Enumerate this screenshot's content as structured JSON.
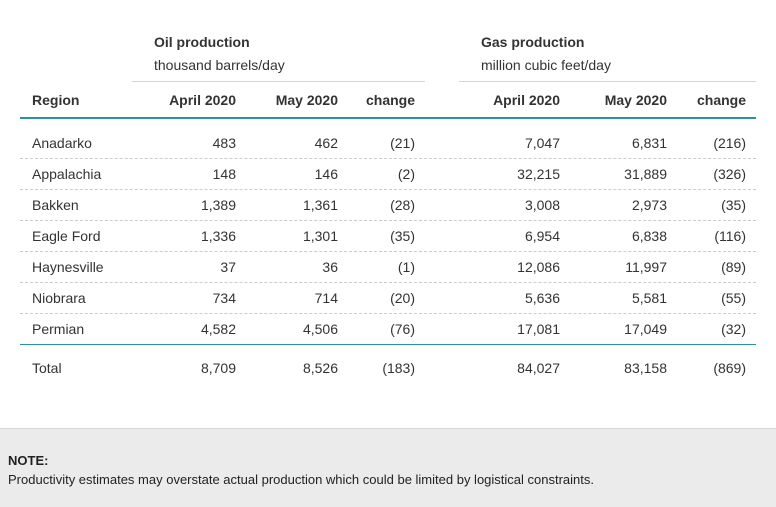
{
  "groups": {
    "oil": {
      "title": "Oil production",
      "unit": "thousand barrels/day"
    },
    "gas": {
      "title": "Gas production",
      "unit": "million cubic feet/day"
    }
  },
  "headers": {
    "region": "Region",
    "oil_april": "April 2020",
    "oil_may": "May 2020",
    "oil_change": "change",
    "gas_april": "April 2020",
    "gas_may": "May 2020",
    "gas_change": "change"
  },
  "rows": [
    {
      "region": "Anadarko",
      "oil_april": "483",
      "oil_may": "462",
      "oil_change": "(21)",
      "gas_april": "7,047",
      "gas_may": "6,831",
      "gas_change": "(216)"
    },
    {
      "region": "Appalachia",
      "oil_april": "148",
      "oil_may": "146",
      "oil_change": "(2)",
      "gas_april": "32,215",
      "gas_may": "31,889",
      "gas_change": "(326)"
    },
    {
      "region": "Bakken",
      "oil_april": "1,389",
      "oil_may": "1,361",
      "oil_change": "(28)",
      "gas_april": "3,008",
      "gas_may": "2,973",
      "gas_change": "(35)"
    },
    {
      "region": "Eagle Ford",
      "oil_april": "1,336",
      "oil_may": "1,301",
      "oil_change": "(35)",
      "gas_april": "6,954",
      "gas_may": "6,838",
      "gas_change": "(116)"
    },
    {
      "region": "Haynesville",
      "oil_april": "37",
      "oil_may": "36",
      "oil_change": "(1)",
      "gas_april": "12,086",
      "gas_may": "11,997",
      "gas_change": "(89)"
    },
    {
      "region": "Niobrara",
      "oil_april": "734",
      "oil_may": "714",
      "oil_change": "(20)",
      "gas_april": "5,636",
      "gas_may": "5,581",
      "gas_change": "(55)"
    },
    {
      "region": "Permian",
      "oil_april": "4,582",
      "oil_may": "4,506",
      "oil_change": "(76)",
      "gas_april": "17,081",
      "gas_may": "17,049",
      "gas_change": "(32)"
    }
  ],
  "total": {
    "region": "Total",
    "oil_april": "8,709",
    "oil_may": "8,526",
    "oil_change": "(183)",
    "gas_april": "84,027",
    "gas_may": "83,158",
    "gas_change": "(869)"
  },
  "note": {
    "title": "NOTE:",
    "text": "Productivity estimates may overstate actual production which could be limited by logistical constraints."
  },
  "colors": {
    "accent_rule": "#2a92a8",
    "note_bg": "#ebebeb",
    "text": "#333333"
  }
}
